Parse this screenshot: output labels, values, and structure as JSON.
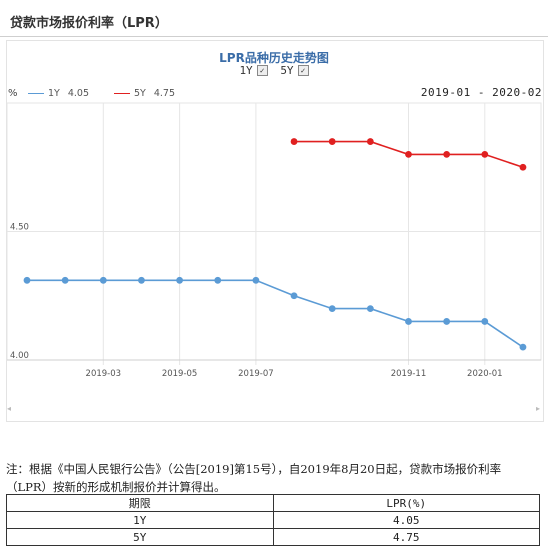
{
  "header": {
    "title": "贷款市场报价利率（LPR）"
  },
  "chart_panel": {
    "title": "LPR品种历史走势图",
    "toggles": [
      {
        "label": "1Y",
        "checked": true
      },
      {
        "label": "5Y",
        "checked": true
      }
    ],
    "unit_label": "%",
    "legend": [
      {
        "name": "1Y",
        "value": "4.05",
        "color": "#5b9bd5"
      },
      {
        "name": "5Y",
        "value": "4.75",
        "color": "#e02020"
      }
    ],
    "date_range": "2019-01 - 2020-02"
  },
  "chart_data": {
    "type": "line",
    "x": [
      "2019-01",
      "2019-02",
      "2019-03",
      "2019-04",
      "2019-05",
      "2019-06",
      "2019-07",
      "2019-08",
      "2019-09",
      "2019-10",
      "2019-11",
      "2019-12",
      "2020-01",
      "2020-02"
    ],
    "x_tick_labels": [
      "2019-03",
      "2019-05",
      "2019-07",
      "2019-11",
      "2020-01"
    ],
    "y_tick_labels": [
      "4.00",
      "4.50"
    ],
    "ylim": [
      4.0,
      5.0
    ],
    "grid": true,
    "series": [
      {
        "name": "1Y",
        "color": "#5b9bd5",
        "values": [
          4.31,
          4.31,
          4.31,
          4.31,
          4.31,
          4.31,
          4.31,
          4.25,
          4.2,
          4.2,
          4.15,
          4.15,
          4.15,
          4.05
        ]
      },
      {
        "name": "5Y",
        "color": "#e02020",
        "values": [
          null,
          null,
          null,
          null,
          null,
          null,
          null,
          4.85,
          4.85,
          4.85,
          4.8,
          4.8,
          4.8,
          4.75
        ]
      }
    ]
  },
  "note": {
    "text": "注：根据《中国人民银行公告》（公告[2019]第15号），自2019年8月20日起，贷款市场报价利率（LPR）按新的形成机制报价并计算得出。"
  },
  "rate_table": {
    "headers": [
      "期限",
      "LPR(%)"
    ],
    "rows": [
      [
        "1Y",
        "4.05"
      ],
      [
        "5Y",
        "4.75"
      ]
    ]
  },
  "scroll_icons": {
    "left": "scroll-left-arrow-icon",
    "right": "scroll-right-arrow-icon"
  }
}
